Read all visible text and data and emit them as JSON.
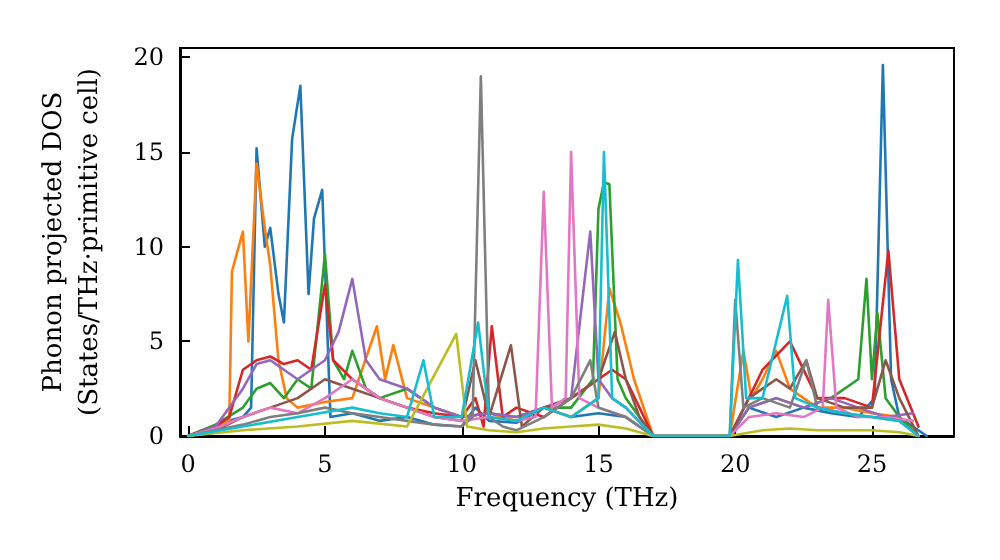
{
  "chart_data": {
    "type": "line",
    "xlabel": "Frequency (THz)",
    "ylabel": "Phonon projected DOS\n(States/THz·primitive cell)",
    "xlim": [
      -0.3,
      28
    ],
    "ylim": [
      0,
      20.5
    ],
    "xticks": [
      0,
      5,
      10,
      15,
      20,
      25
    ],
    "yticks": [
      0,
      5,
      10,
      15,
      20
    ],
    "grid": false,
    "marker": "none",
    "line_style": "solid",
    "series": [
      {
        "color": "#1f77b4",
        "x": [
          0,
          0.5,
          1,
          1.5,
          2,
          2.3,
          2.5,
          2.8,
          3,
          3.3,
          3.5,
          3.8,
          4.1,
          4.4,
          4.6,
          4.9,
          5.2,
          6,
          7,
          8,
          9,
          10,
          10.5,
          11,
          12,
          13,
          14,
          15,
          16,
          17,
          19.8,
          20.5,
          21.5,
          22.5,
          23.5,
          24.5,
          25.1,
          25.4,
          25.7,
          26,
          26.5,
          27
        ],
        "values": [
          0,
          0.2,
          0.5,
          0.8,
          1,
          1.5,
          15.2,
          10,
          11,
          7.5,
          6,
          15.7,
          18.5,
          7.5,
          11.5,
          13,
          1,
          1.2,
          0.8,
          1,
          0.6,
          0.5,
          1.5,
          0.8,
          0.7,
          1.5,
          1,
          1.2,
          1,
          0,
          0,
          1.5,
          1,
          1.5,
          1.2,
          1,
          2,
          19.6,
          3,
          1,
          0.5,
          0
        ]
      },
      {
        "color": "#ff7f0e",
        "x": [
          0,
          0.5,
          1,
          1.5,
          1.6,
          2.0,
          2.2,
          2.5,
          2.8,
          3.0,
          3.3,
          3.6,
          4,
          5,
          6,
          6.9,
          7.2,
          7.5,
          8,
          9,
          10,
          11,
          12,
          13,
          14,
          15,
          15.4,
          15.8,
          16.3,
          17,
          19.8,
          20.3,
          20.6,
          21,
          21.5,
          22,
          23,
          24,
          25,
          26,
          26.7
        ],
        "values": [
          0,
          0.3,
          0.5,
          0.8,
          8.7,
          10.8,
          5,
          14.4,
          11,
          9,
          4,
          2,
          1.5,
          1.8,
          2,
          5.8,
          3,
          4.8,
          2,
          1.5,
          1,
          1.2,
          0.8,
          1.5,
          1,
          2,
          7.8,
          6,
          3,
          0,
          0,
          4.5,
          2,
          3,
          4.5,
          2.5,
          1.5,
          1.5,
          1.2,
          1,
          0
        ]
      },
      {
        "color": "#2ca02c",
        "x": [
          0,
          1,
          2,
          2.5,
          3,
          3.5,
          4,
          4.5,
          5.0,
          5.3,
          5.7,
          6,
          6.5,
          7,
          8,
          9,
          10,
          11,
          12,
          13,
          14,
          14.8,
          15.0,
          15.2,
          15.4,
          15.7,
          16,
          17,
          19.8,
          20.5,
          21.5,
          22.5,
          23.5,
          24.5,
          24.8,
          25.0,
          25.2,
          25.5,
          26,
          26.7
        ],
        "values": [
          0,
          0.6,
          1.5,
          2.5,
          2.8,
          2,
          3,
          2.5,
          9.6,
          4,
          3,
          4.5,
          2.5,
          2,
          2.5,
          1.5,
          1,
          1.2,
          1,
          1.5,
          1.5,
          3,
          12,
          13.4,
          13.3,
          3,
          2,
          0,
          0,
          1.5,
          2,
          1.5,
          2,
          3,
          8.3,
          3,
          6.5,
          2,
          1,
          0
        ]
      },
      {
        "color": "#d62728",
        "x": [
          0,
          1,
          1.5,
          2,
          2.5,
          3,
          3.5,
          4,
          4.5,
          5.0,
          5.3,
          6,
          7,
          8,
          9,
          10,
          10.5,
          10.8,
          11.1,
          11.5,
          12,
          13,
          14,
          15,
          15.5,
          16,
          16.5,
          17,
          19.8,
          20.5,
          21,
          22,
          23,
          24,
          25,
          25.6,
          26,
          26.7
        ],
        "values": [
          0,
          0.5,
          1,
          3.5,
          4,
          4.2,
          3.8,
          4,
          3.5,
          8,
          4,
          3,
          2,
          1.5,
          1.2,
          1,
          2,
          0.5,
          5.8,
          1,
          1.5,
          1,
          2,
          3,
          3.5,
          3,
          1.5,
          0,
          0,
          2,
          3.5,
          5,
          2,
          2,
          1.5,
          9.8,
          3,
          0.5
        ]
      },
      {
        "color": "#9467bd",
        "x": [
          0,
          1,
          2,
          2.5,
          3,
          3.5,
          4,
          4.5,
          5,
          5.5,
          6,
          6.5,
          7,
          8,
          9,
          10,
          11,
          12,
          13,
          14,
          14.7,
          15,
          15.5,
          16,
          17,
          19.8,
          20.5,
          21.5,
          22.5,
          23.5,
          24.5,
          25.5,
          26.5
        ],
        "values": [
          0,
          0.5,
          2.5,
          3.8,
          4,
          3.5,
          3,
          3.5,
          4,
          5.5,
          8.3,
          4,
          3,
          2.5,
          1.5,
          1,
          1.2,
          1,
          1.5,
          2,
          10.8,
          3,
          2,
          1.5,
          0,
          0,
          1.5,
          2,
          1.5,
          2,
          1.5,
          1,
          1.2
        ]
      },
      {
        "color": "#8c564b",
        "x": [
          0,
          1,
          2,
          3,
          4,
          5,
          6,
          7,
          8,
          9,
          10,
          10.5,
          11,
          11.8,
          12.2,
          13,
          14,
          15,
          15.6,
          16,
          16.5,
          17,
          19.8,
          20.5,
          21.5,
          22,
          22.6,
          23,
          24,
          25,
          25.5,
          26,
          26.7
        ],
        "values": [
          0,
          0.3,
          1,
          1.5,
          2,
          3,
          2.5,
          2,
          1.5,
          1,
          0.8,
          4,
          1,
          4.8,
          0.5,
          1.5,
          2,
          3,
          5.5,
          3,
          1,
          0,
          0,
          2,
          3,
          2.5,
          4,
          2,
          1.5,
          1.5,
          4,
          2,
          0
        ]
      },
      {
        "color": "#e377c2",
        "x": [
          0,
          1,
          2,
          3,
          4,
          5,
          6,
          7,
          8,
          9,
          10,
          11,
          12,
          12.7,
          13.0,
          13.3,
          13.8,
          14.0,
          14.3,
          15,
          16,
          17,
          19.8,
          20.5,
          21.5,
          22.5,
          23.2,
          23.4,
          23.7,
          24.5,
          25.5,
          26.5
        ],
        "values": [
          0,
          0.4,
          1,
          1.5,
          1.2,
          2,
          3,
          2,
          1.5,
          1,
          0.8,
          1,
          0.8,
          1,
          12.9,
          1.5,
          2,
          15,
          2,
          1.5,
          1,
          0,
          0,
          1,
          1.2,
          1,
          1.5,
          7.2,
          1.5,
          1,
          1,
          0.8
        ]
      },
      {
        "color": "#7f7f7f",
        "x": [
          0,
          1,
          2,
          3,
          4,
          5,
          6,
          7,
          8,
          9,
          10,
          10.4,
          10.7,
          11.0,
          11.5,
          12,
          13,
          14,
          14.7,
          15,
          16,
          17,
          19.8,
          20.0,
          20.3,
          21,
          22,
          22.6,
          23,
          24,
          25,
          26,
          26.7
        ],
        "values": [
          0,
          0.3,
          0.6,
          1,
          1.2,
          1.5,
          1.2,
          1,
          0.8,
          0.6,
          0.5,
          1,
          19,
          1,
          0.5,
          0.3,
          1,
          2,
          4,
          1.5,
          1,
          0,
          0,
          7.2,
          1.5,
          2,
          1.5,
          4,
          1.5,
          1.2,
          1,
          0.8,
          0
        ]
      },
      {
        "color": "#bcbd22",
        "x": [
          0,
          2,
          4,
          6,
          8,
          9.8,
          10.2,
          11,
          12,
          13,
          14,
          15,
          16,
          17,
          19.8,
          21,
          22,
          23,
          24,
          25,
          26,
          26.7
        ],
        "values": [
          0,
          0.3,
          0.5,
          0.8,
          0.5,
          5.4,
          0.5,
          0.3,
          0.2,
          0.4,
          0.5,
          0.6,
          0.4,
          0,
          0,
          0.3,
          0.4,
          0.3,
          0.3,
          0.3,
          0.2,
          0
        ]
      },
      {
        "color": "#17becf",
        "x": [
          0,
          2,
          4,
          6,
          7,
          8,
          8.6,
          9,
          10,
          10.6,
          11,
          12,
          13,
          14,
          15,
          15.2,
          15.5,
          16,
          17,
          19.8,
          20.1,
          20.4,
          21,
          21.9,
          22.2,
          23,
          24,
          25,
          26,
          26.7
        ],
        "values": [
          0,
          0.5,
          1,
          1.5,
          1.2,
          1,
          4,
          1,
          1,
          6,
          1,
          0.8,
          1.5,
          1,
          2,
          15,
          2,
          1.5,
          0,
          0,
          9.3,
          2,
          2,
          7.4,
          2,
          1.5,
          1.2,
          1,
          0.8,
          0
        ]
      }
    ]
  }
}
